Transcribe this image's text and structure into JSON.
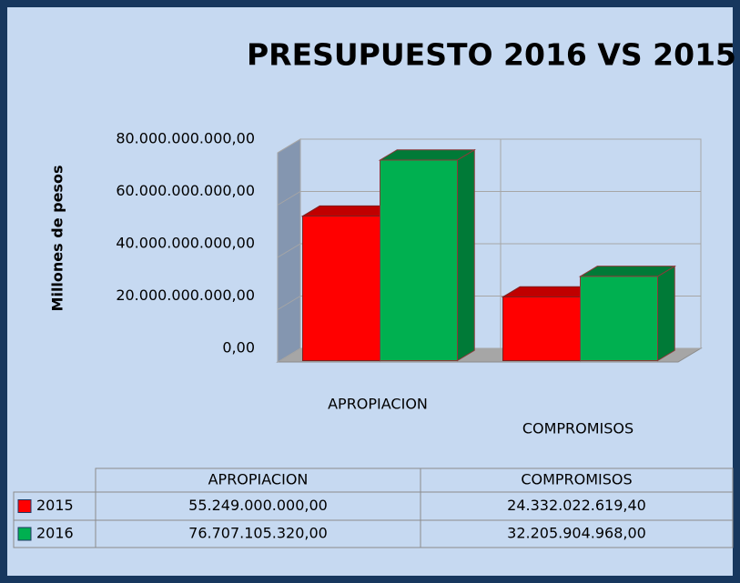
{
  "chart_data": {
    "type": "bar3d",
    "title": "PRESUPUESTO 2016 VS 2015",
    "y_axis_label": "Millones de pesos",
    "categories": [
      "APROPIACION",
      "COMPROMISOS"
    ],
    "series": [
      {
        "name": "2015",
        "color": "#ff0000",
        "values": [
          55249000000,
          24332022619.4
        ],
        "value_labels": [
          "55.249.000.000,00",
          "24.332.022.619,40"
        ]
      },
      {
        "name": "2016",
        "color": "#00b050",
        "values": [
          76707105320,
          32205904968
        ],
        "value_labels": [
          "76.707.105.320,00",
          "32.205.904.968,00"
        ]
      }
    ],
    "ylim": [
      0,
      80000000000
    ],
    "yticks": [
      {
        "value": 0,
        "label": "0,00"
      },
      {
        "value": 20000000000,
        "label": "20.000.000.000,00"
      },
      {
        "value": 40000000000,
        "label": "40.000.000.000,00"
      },
      {
        "value": 60000000000,
        "label": "60.000.000.000,00"
      },
      {
        "value": 80000000000,
        "label": "80.000.000.000,00"
      }
    ],
    "grid": true,
    "data_table": true
  }
}
